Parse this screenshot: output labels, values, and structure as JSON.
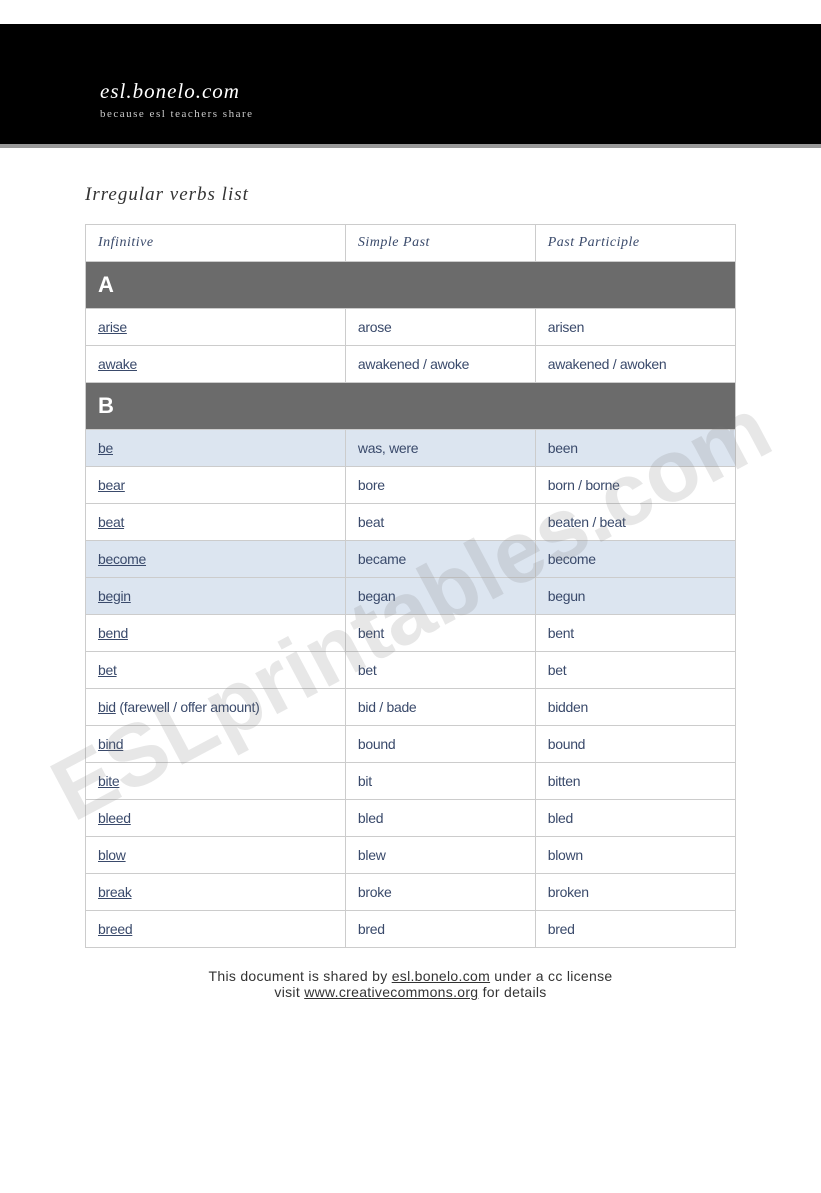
{
  "header": {
    "site_title": "esl.bonelo.com",
    "tagline": "because esl teachers share"
  },
  "page_title": "Irregular verbs list",
  "columns": {
    "infinitive": "Infinitive",
    "simple_past": "Simple Past",
    "past_participle": "Past Participle"
  },
  "sections": [
    {
      "letter": "A",
      "rows": [
        {
          "inf": "arise",
          "note": "",
          "sp": "arose",
          "pp": "arisen",
          "hl": false
        },
        {
          "inf": "awake",
          "note": "",
          "sp": "awakened / awoke",
          "pp": "awakened / awoken",
          "hl": false
        }
      ]
    },
    {
      "letter": "B",
      "rows": [
        {
          "inf": "be",
          "note": "",
          "sp": "was, were",
          "pp": "been",
          "hl": true
        },
        {
          "inf": "bear",
          "note": "",
          "sp": "bore",
          "pp": "born / borne",
          "hl": false
        },
        {
          "inf": "beat",
          "note": "",
          "sp": "beat",
          "pp": "beaten / beat",
          "hl": false
        },
        {
          "inf": "become",
          "note": "",
          "sp": "became",
          "pp": "become",
          "hl": true
        },
        {
          "inf": "begin",
          "note": "",
          "sp": "began",
          "pp": "begun",
          "hl": true
        },
        {
          "inf": "bend",
          "note": "",
          "sp": "bent",
          "pp": "bent",
          "hl": false
        },
        {
          "inf": "bet",
          "note": "",
          "sp": "bet",
          "pp": "bet",
          "hl": false
        },
        {
          "inf": "bid",
          "note": " (farewell / offer amount)",
          "sp": "bid / bade",
          "pp": "bidden",
          "hl": false
        },
        {
          "inf": "bind",
          "note": "",
          "sp": "bound",
          "pp": "bound",
          "hl": false
        },
        {
          "inf": "bite",
          "note": "",
          "sp": "bit",
          "pp": "bitten",
          "hl": false
        },
        {
          "inf": "bleed",
          "note": "",
          "sp": "bled",
          "pp": "bled",
          "hl": false
        },
        {
          "inf": "blow",
          "note": "",
          "sp": "blew",
          "pp": "blown",
          "hl": false
        },
        {
          "inf": "break",
          "note": "",
          "sp": "broke",
          "pp": "broken",
          "hl": false
        },
        {
          "inf": "breed",
          "note": "",
          "sp": "bred",
          "pp": "bred",
          "hl": false
        }
      ]
    }
  ],
  "footer": {
    "line1_pre": "This document is shared by ",
    "line1_link": "esl.bonelo.com",
    "line1_post": " under a cc license",
    "line2_pre": "visit ",
    "line2_link": "www.creativecommons.org",
    "line2_post": " for details"
  },
  "watermark": "ESLprintables.com"
}
